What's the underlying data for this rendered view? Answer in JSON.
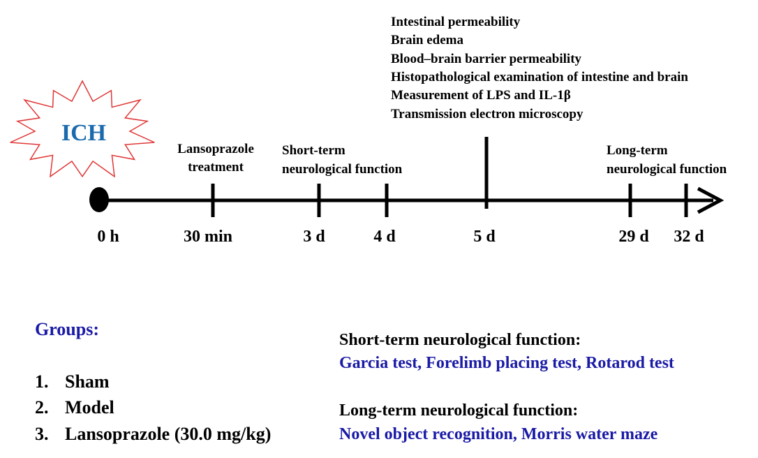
{
  "badge": "ICH",
  "measurements": [
    "Intestinal permeability",
    "Brain edema",
    "Blood–brain barrier permeability",
    "Histopathological examination of intestine and brain",
    "Measurement of LPS and IL-1β",
    "Transmission electron microscopy"
  ],
  "events": [
    {
      "lines": [
        "Lansoprazole",
        "treatment"
      ]
    },
    {
      "lines": [
        "Short-term",
        "neurological function"
      ]
    },
    {
      "lines": [
        "Long-term",
        "neurological function"
      ]
    }
  ],
  "timeline": [
    "0 h",
    "30 min",
    "3 d",
    "4 d",
    "5 d",
    "29 d",
    "32 d"
  ],
  "groups": {
    "title": "Groups:",
    "items": [
      {
        "number": "1.",
        "label": "Sham"
      },
      {
        "number": "2.",
        "label": "Model"
      },
      {
        "number": "3.",
        "label": "Lansoprazole (30.0 mg/kg)"
      }
    ]
  },
  "tests": [
    {
      "heading": "Short-term neurological function:",
      "items": "Garcia test, Forelimb placing test, Rotarod test"
    },
    {
      "heading": "Long-term neurological function:",
      "items": "Novel object recognition, Morris water maze"
    }
  ]
}
